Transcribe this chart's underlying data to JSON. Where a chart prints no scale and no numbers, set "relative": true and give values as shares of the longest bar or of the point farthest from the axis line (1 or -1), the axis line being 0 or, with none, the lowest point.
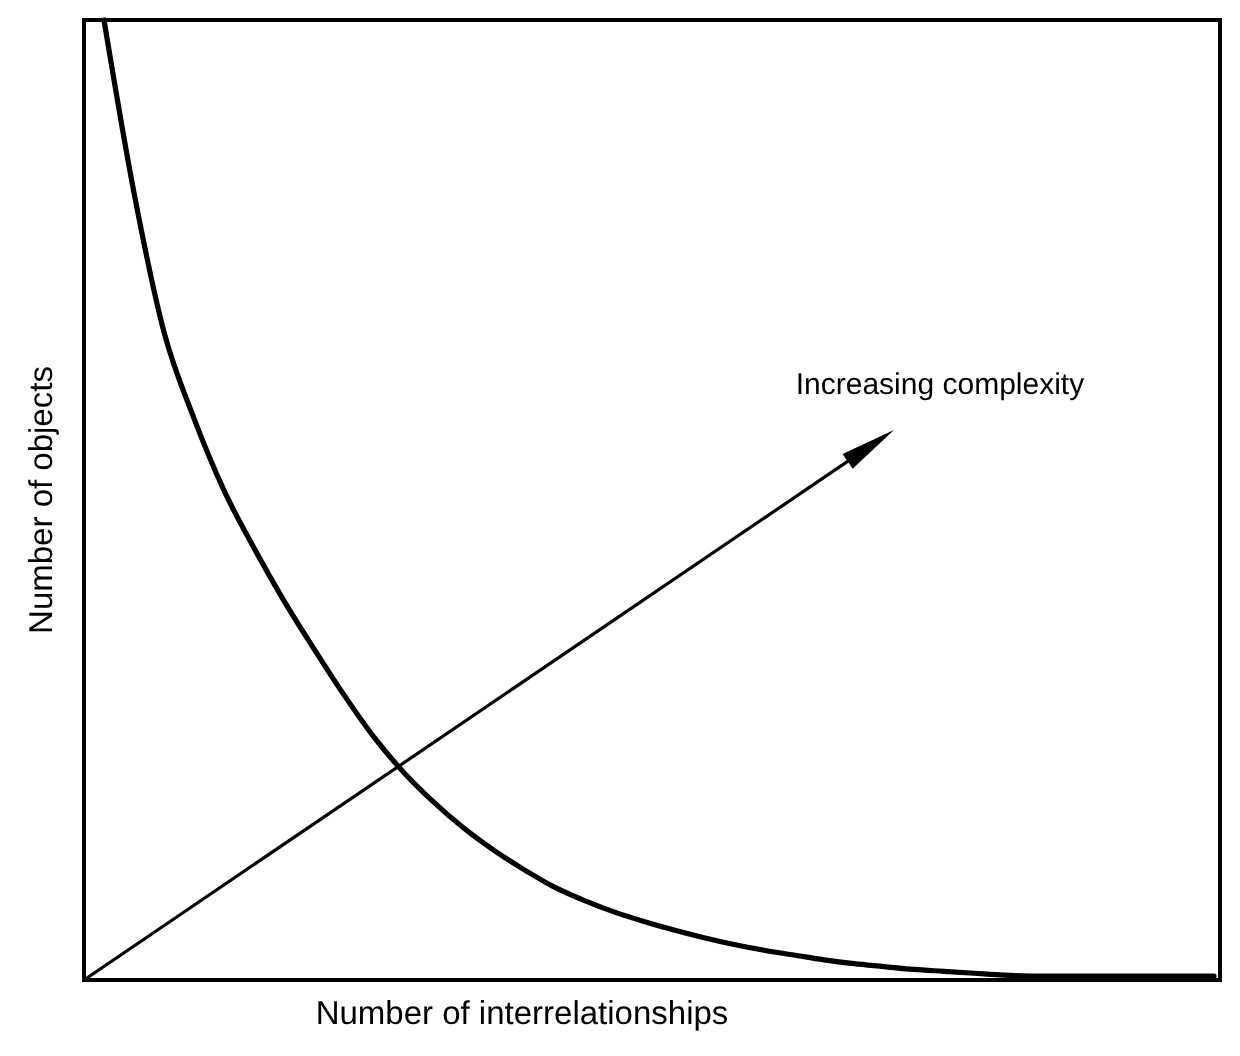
{
  "chart_data": {
    "type": "line",
    "xlabel": "Number of interrelationships",
    "ylabel": "Number of objects",
    "annotations": [
      "Increasing complexity"
    ],
    "relative": true,
    "categories": [
      null,
      null,
      null,
      null,
      null,
      null,
      null,
      null,
      null,
      null,
      null,
      null,
      null,
      null,
      null,
      null,
      null,
      null,
      null,
      null,
      null,
      null,
      null,
      null,
      null,
      null,
      null,
      null,
      null,
      null,
      null,
      null,
      null,
      null,
      null,
      null,
      null,
      null
    ],
    "series": [
      {
        "color": "#000000",
        "values": [
          1.0,
          0.82,
          0.675,
          0.585,
          0.51,
          0.45,
          0.395,
          0.345,
          0.297,
          0.253,
          0.216,
          0.185,
          0.158,
          0.135,
          0.115,
          0.097,
          0.083,
          0.071,
          0.061,
          0.052,
          0.044,
          0.037,
          0.031,
          0.026,
          0.021,
          0.017,
          0.014,
          0.011,
          0.009,
          0.007,
          0.005,
          0.004,
          0.004,
          0.004,
          0.004,
          0.004,
          0.004,
          0.004
        ]
      }
    ]
  }
}
